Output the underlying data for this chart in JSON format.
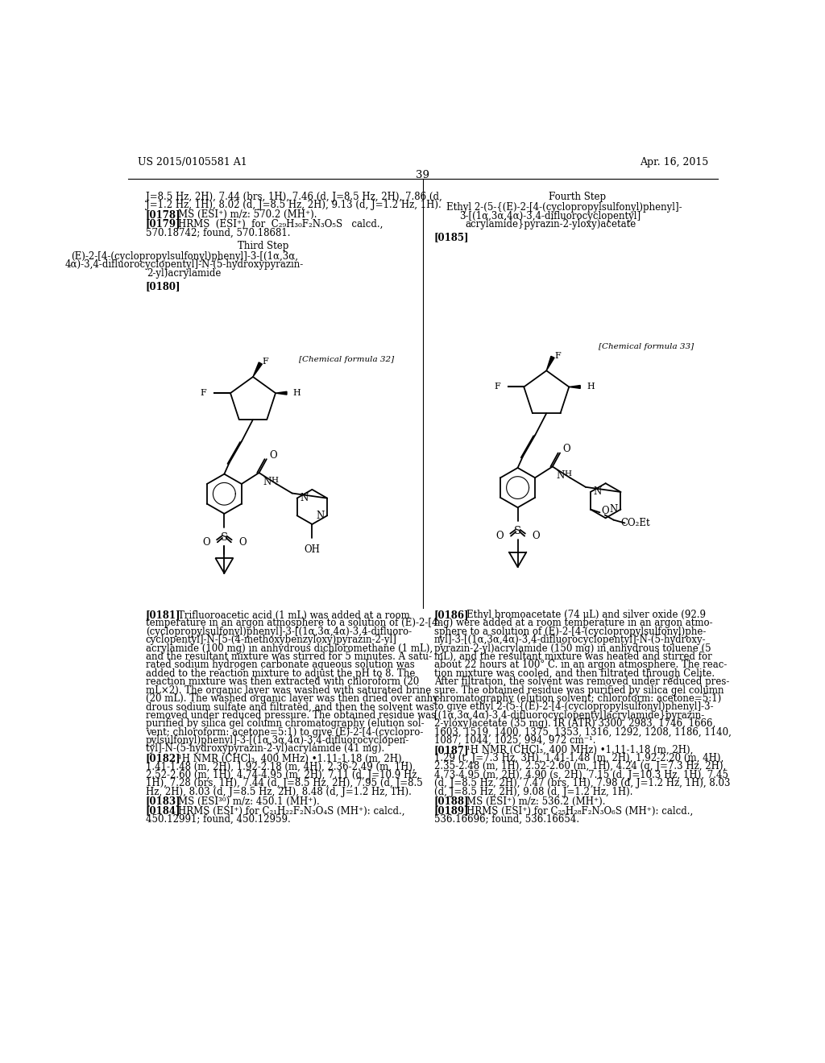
{
  "page_number": "39",
  "patent_number": "US 2015/0105581 A1",
  "patent_date": "Apr. 16, 2015",
  "background_color": "#ffffff",
  "text_color": "#000000",
  "top_text_left": "J=8.5 Hz, 2H), 7.44 (brs, 1H), 7.46 (d, J=8.5 Hz, 2H), 7.86 (d,\nJ=1.2 Hz, 1H), 8.02 (d, J=8.5 Hz, 2H), 9.13 (d, J=1.2 Hz, 1H).",
  "ref178": "[0178]",
  "ref178_text": "MS (ESI⁺) m/z: 570.2 (MH⁺).",
  "ref179": "[0179]",
  "ref179_text": "HRMS  (ESI⁺)  for  C₂₉H₃₀F₂N₃O₅S  calcd.,\n570.18742; found, 570.18681.",
  "fourth_step_title": "Fourth Step",
  "fourth_step_compound": "Ethyl 2-(5-{(E)-2-[4-(cyclopropylsulfonyl)phenyl]-\n3-[(1α,3α,4α)-3,4-difluorocyclopentyl]\nacrylamide}pyrazin-2-yloxy)acetate",
  "third_step_title": "Third Step",
  "third_step_compound": "(E)-2-[4-(cyclopropylsulfonyl)phenyl]-3-[(1α,3α,\n4α)-3,4-difluorocyclopentyl]-N-(5-hydroxypyrazin-\n2-yl)acrylamide",
  "ref180": "[0180]",
  "ref185": "[0185]",
  "chem_formula_32": "[Chemical formula 32]",
  "chem_formula_33": "[Chemical formula 33]",
  "ref181": "[0181]",
  "ref181_text": "Trifluoroacetic acid (1 mL) was added at a room\ntemperature in an argon atmosphere to a solution of (E)-2-[4-\n(cyclopropylsulfonyl)phenyl]-3-[(1α,3α,4α)-3,4-difluoro-\ncyclopentyl]-N-[5-(4-methoxybenzyloxy)pyrazin-2-yl]\nacrylamide (100 mg) in anhydrous dichloromethane (1 mL),\nand the resultant mixture was stirred for 5 minutes. A satu-\nrated sodium hydrogen carbonate aqueous solution was\nadded to the reaction mixture to adjust the pH to 8. The\nreaction mixture was then extracted with chloroform (20\nmL×2). The organic layer was washed with saturated brine\n(20 mL). The washed organic layer was then dried over anhy-\ndrous sodium sulfate and filtrated, and then the solvent was\nremoved under reduced pressure. The obtained residue was\npurified by silica gel column chromatography (elution sol-\nvent; chloroform: acetone=5:1) to give (E)-2-[4-(cyclopro-\npylsulfonyl)phenyl]-3-[(1α,3α,4α)-3,4-difluorocyclopen-\ntyl]-N-(5-hydroxypyrazin-2-yl)acrylamide (41 mg).",
  "ref182": "[0182]",
  "ref182_text": "¹H NMR (CHCl₃, 400 MHz) •1.11-1.18 (m, 2H),\n1.41-1.48 (m, 2H), 1.92-2.18 (m, 4H), 2.36-2.49 (m, 1H),\n2.52-2.60 (m, 1H), 4.74-4.95 (m, 2H), 7.11 (d, J=10.9 Hz,\n1H), 7.28 (brs, 1H), 7.44 (d, J=8.5 Hz, 2H), 7.95 (d, J=1.2 Hz,\n1H), 8.03 (d, J=8.5 Hz, 2H), 8.48 (d, J=1.2 Hz, 1H).",
  "ref183": "[0183]",
  "ref183_text": "MS (ESI³⁰) m/z: 450.1 (MH⁺).",
  "ref184": "[0184]",
  "ref184_text": "HRMS (ESI⁺) for C₂₁H₂₂F₂N₃O₄S (MH⁺): calcd.,\n450.12991; found, 450.12959.",
  "ref186": "[0186]",
  "ref186_text": "Ethyl bromoacetate (74 μL) and silver oxide (92.9\nmg) were added at a room temperature in an argon atmo-\nsphere to a solution of (E)-2-[4-(cyclopropylsulfonyl)phe-\nnyl]-3-[(1α,3α,4α)-3,4-difluorocyclopentyl]-N-(5-hydroxy-\npyrazin-2-yl)acrylamide (150 mg) in anhydrous toluene (5\nmL), and the resultant mixture was heated and stirred for\nabout 22 hours at 100° C. in an argon atmosphere. The reac-\ntion mixture was cooled, and then filtrated through Celite.\nAfter filtration, the solvent was removed under reduced pres-\nsure. The obtained residue was purified by silica gel column\nchromatography (elution solvent; chloroform: acetone=5:1)\nto give ethyl 2-(5-{(E)-2-[4-(cyclopropylsulfonyl)phenyl]-3-\n[(1α,3α,4α)-3,4-difluorocyclopentyl]acrylamide}pyrazin-\n2-yloxy)acetate (35 mg). IR (ATR) 3300, 2983, 1746, 1666,\n1603, 1519, 1400, 1375, 1353, 1316, 1292, 1208, 1186, 1140,\n1087, 1044, 1025, 994, 972 cm⁻¹.",
  "ref187": "[0187]",
  "ref187_text": "¹H NMR (CHCl₃, 400 MHz) •1.11-1.18 (m, 2H),\n1.29 (t, J=7.3 Hz, 3H), 1.41-1.48 (m, 2H), 1.92-2.20 (m, 4H),\n2.35-2.48 (m, 1H), 2.52-2.60 (m, 1H), 4.24 (q, J=7.3 Hz, 2H),\n4.73-4.95 (m, 2H), 4.90 (s, 2H), 7.15 (d, J=10.3 Hz, 1H), 7.45\n(d, J=8.5 Hz, 2H), 7.47 (brs, 1H), 7.98 (d, J=1.2 Hz, 1H), 8.03\n(d, J=8.5 Hz, 2H), 9.08 (d, J=1.2 Hz, 1H).",
  "ref188": "[0188]",
  "ref188_text": "MS (ESI⁺) m/z: 536.2 (MH⁺).",
  "ref189": "[0189]",
  "ref189_text": "HRMS (ESI⁺) for C₂₅H₂₈F₂N₃O₆S (MH⁺): calcd.,\n536.16696; found, 536.16654."
}
